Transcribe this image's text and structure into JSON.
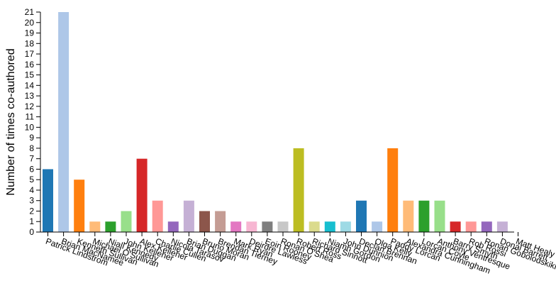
{
  "chart_data": {
    "type": "bar",
    "ylabel": "Number of times co-authored",
    "xlabel": "",
    "title": "",
    "ylim": [
      0,
      21
    ],
    "yticks": [
      0,
      1,
      2,
      3,
      4,
      5,
      6,
      7,
      8,
      9,
      10,
      11,
      12,
      13,
      14,
      15,
      16,
      17,
      18,
      19,
      20,
      21
    ],
    "grid": false,
    "legend": "none",
    "categories": [
      "Patrick Lindstrom",
      "Brian MacNamee",
      "Kenneth Sullivan",
      "Michael O'Sullivan",
      "Niall Kennedy",
      "John Kelleher",
      "Alex Kelleher",
      "Charlie Cullen",
      "Nicola Tarasov",
      "Brian Duggan",
      "Bruno Moran",
      "Brendan Tierney",
      "Mark Ryan",
      "Deirdre Lawless",
      "Eoin Rooney",
      "Ronan O'Shea",
      "Robert Ross",
      "Richard Sinnott",
      "Niamh Gordon",
      "John Dunnion",
      "Declan Brennan",
      "Olga Kelly",
      "Paddy Lorcan",
      "Alexandra Cunningham",
      "Lorcan Coyle",
      "Anthony Ventresque",
      "Barry Smyth",
      "Rob Rossi",
      "Ronan Gobolodskikh",
      "Donal Barrett",
      "Matt Healy"
    ],
    "values": [
      6,
      21,
      5,
      1,
      1,
      2,
      7,
      3,
      1,
      3,
      2,
      2,
      1,
      1,
      1,
      1,
      8,
      1,
      1,
      1,
      3,
      1,
      8,
      3,
      3,
      3,
      1,
      1,
      1,
      1,
      0
    ],
    "colors": [
      "#1f77b4",
      "#aec7e8",
      "#ff7f0e",
      "#ffbb78",
      "#2ca02c",
      "#98df8a",
      "#d62728",
      "#ff9896",
      "#9467bd",
      "#c5b0d5",
      "#8c564b",
      "#c49c94",
      "#e377c2",
      "#f7b6d2",
      "#7f7f7f",
      "#c7c7c7",
      "#bcbd22",
      "#dbdb8d",
      "#17becf",
      "#9edae5",
      "#1f77b4",
      "#aec7e8",
      "#ff7f0e",
      "#ffbb78",
      "#2ca02c",
      "#98df8a",
      "#d62728",
      "#ff9896",
      "#9467bd",
      "#c5b0d5",
      "#8c564b"
    ]
  }
}
